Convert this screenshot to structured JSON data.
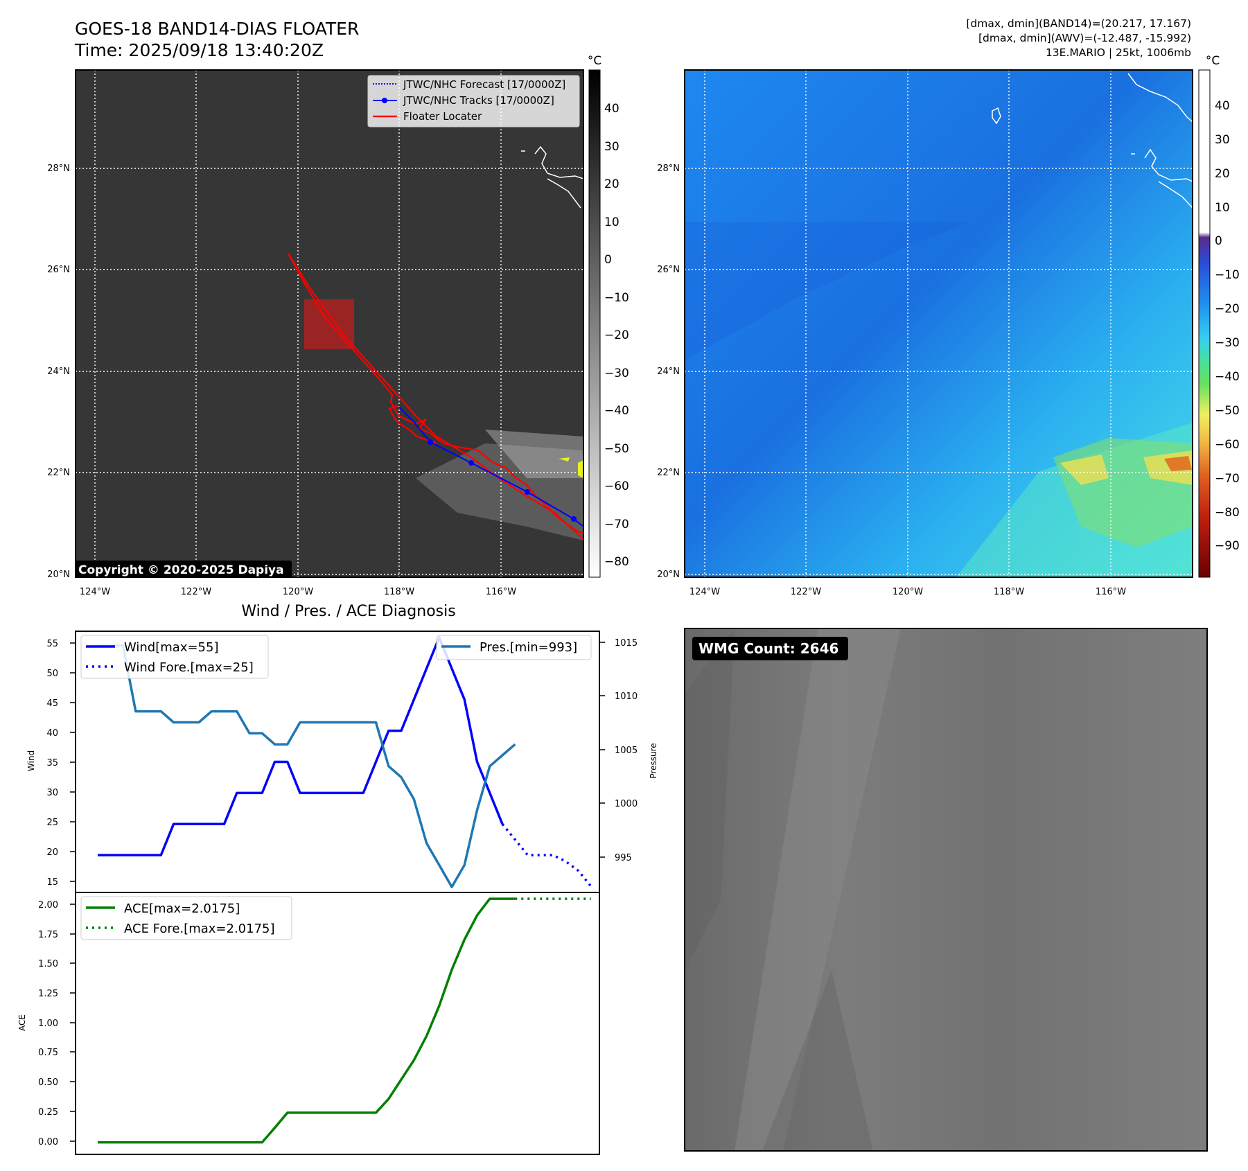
{
  "header": {
    "title_line1": "GOES-18 BAND14-DIAS FLOATER",
    "title_line2": "Time: 2025/09/18 13:40:20Z",
    "info_line1": "[dmax, dmin](BAND14)=(20.217, 17.167)",
    "info_line2": "[dmax, dmin](AWV)=(-12.487, -15.992)",
    "info_line3": "13E.MARIO | 25kt, 1006mb"
  },
  "map": {
    "lon_labels": [
      "124°W",
      "122°W",
      "120°W",
      "118°W",
      "116°W"
    ],
    "lat_labels": [
      "28°N",
      "26°N",
      "24°N",
      "22°N",
      "20°N"
    ],
    "copyright": "Copyright © 2020-2025 Dapiya",
    "legend": {
      "forecast": "JTWC/NHC Forecast [17/0000Z]",
      "tracks": "JTWC/NHC Tracks [17/0000Z]",
      "floater": "Floater Locater"
    },
    "colors": {
      "forecast": "#0000ff",
      "tracks": "#0000ff",
      "floater": "#ff0000"
    }
  },
  "colorbar_left": {
    "unit": "°C",
    "ticks": [
      "40",
      "30",
      "20",
      "10",
      "0",
      "−10",
      "−20",
      "−30",
      "−40",
      "−50",
      "−60",
      "−70",
      "−80"
    ]
  },
  "colorbar_right": {
    "unit": "°C",
    "ticks": [
      "40",
      "30",
      "20",
      "10",
      "0",
      "−10",
      "−20",
      "−30",
      "−40",
      "−50",
      "−60",
      "−70",
      "−80",
      "−90"
    ]
  },
  "wmg": {
    "label": "WMG Count: 2646"
  },
  "chart_data": [
    {
      "type": "line",
      "title": "Wind / Pres. / ACE Diagnosis",
      "ylabel": "Wind",
      "y2label": "Pressure",
      "ylim": [
        14,
        56
      ],
      "y2lim": [
        992.5,
        1016.3
      ],
      "yticks": [
        "55",
        "50",
        "45",
        "40",
        "35",
        "30",
        "25",
        "20",
        "15"
      ],
      "y2ticks": [
        "1015",
        "1010",
        "1005",
        "1000",
        "995"
      ],
      "series": [
        {
          "name": "Wind[max=55]",
          "color": "#0000ff",
          "values": [
            20,
            20,
            20,
            20,
            20,
            20,
            25,
            25,
            25,
            25,
            25,
            30,
            30,
            30,
            35,
            35,
            30,
            30,
            30,
            30,
            30,
            30,
            35,
            40,
            40,
            45,
            50,
            55,
            50,
            45,
            35,
            30,
            25
          ]
        },
        {
          "name": "Wind Fore.[max=25]",
          "color": "#0000ff",
          "dashed": true,
          "start_index": 32,
          "values": [
            25,
            22.5,
            20,
            20,
            20,
            19,
            17.5,
            15
          ]
        },
        {
          "name": "Pres.[min=993]",
          "color": "#1f77b4",
          "axis": "right",
          "values": [
            1015,
            1015,
            1015,
            1009,
            1009,
            1009,
            1008,
            1008,
            1008,
            1009,
            1009,
            1009,
            1007,
            1007,
            1006,
            1006,
            1008,
            1008,
            1008,
            1008,
            1008,
            1008,
            1008,
            1004,
            1003,
            1001,
            997,
            995,
            993,
            995,
            1000,
            1004,
            1005,
            1006
          ]
        }
      ]
    },
    {
      "type": "line",
      "ylabel": "ACE",
      "ylim": [
        -0.1,
        2.07
      ],
      "yticks": [
        "2.00",
        "1.75",
        "1.50",
        "1.25",
        "1.00",
        "0.75",
        "0.50",
        "0.25",
        "0.00"
      ],
      "series": [
        {
          "name": "ACE[max=2.0175]",
          "color": "#008000",
          "values": [
            0,
            0,
            0,
            0,
            0,
            0,
            0,
            0,
            0,
            0,
            0,
            0,
            0,
            0,
            0.12,
            0.245,
            0.245,
            0.245,
            0.245,
            0.245,
            0.245,
            0.245,
            0.245,
            0.36,
            0.52,
            0.68,
            0.88,
            1.13,
            1.43,
            1.68,
            1.88,
            2.0175,
            2.0175,
            2.0175
          ]
        },
        {
          "name": "ACE Fore.[max=2.0175]",
          "color": "#008000",
          "dashed": true,
          "start_index": 33,
          "values": [
            2.0175,
            2.0175,
            2.0175,
            2.0175,
            2.0175,
            2.0175,
            2.0175
          ]
        }
      ]
    }
  ]
}
